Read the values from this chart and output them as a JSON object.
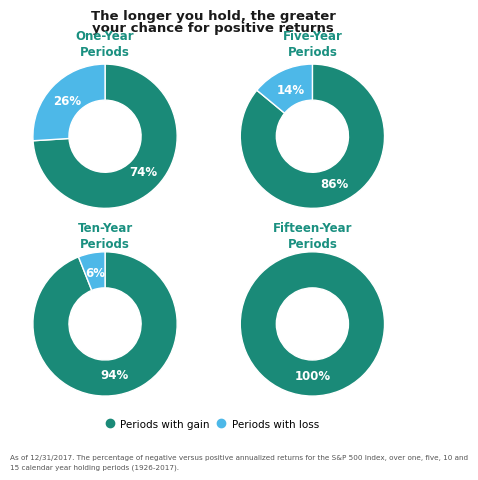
{
  "title_line1": "The longer you hold, the greater",
  "title_line2": "your chance for positive returns",
  "charts": [
    {
      "label": "One-Year\nPeriods",
      "gain": 74,
      "loss": 26,
      "gain_label": "74%",
      "loss_label": "26%"
    },
    {
      "label": "Five-Year\nPeriods",
      "gain": 86,
      "loss": 14,
      "gain_label": "86%",
      "loss_label": "14%"
    },
    {
      "label": "Ten-Year\nPeriods",
      "gain": 94,
      "loss": 6,
      "gain_label": "94%",
      "loss_label": "6%"
    },
    {
      "label": "Fifteen-Year\nPeriods",
      "gain": 100,
      "loss": 0,
      "gain_label": "100%",
      "loss_label": ""
    }
  ],
  "color_gain": "#1a8a78",
  "color_loss": "#4db8e8",
  "color_title": "#1a1a1a",
  "color_chart_title": "#1a9080",
  "footnote_line1": "As of 12/31/2017. The percentage of negative versus positive annualized returns for the S&P 500 Index, over one, five, 10 and",
  "footnote_line2": "15 calendar year holding periods (1926-2017).",
  "legend_gain": "Periods with gain",
  "legend_loss": "Periods with loss",
  "background_color": "#ffffff"
}
